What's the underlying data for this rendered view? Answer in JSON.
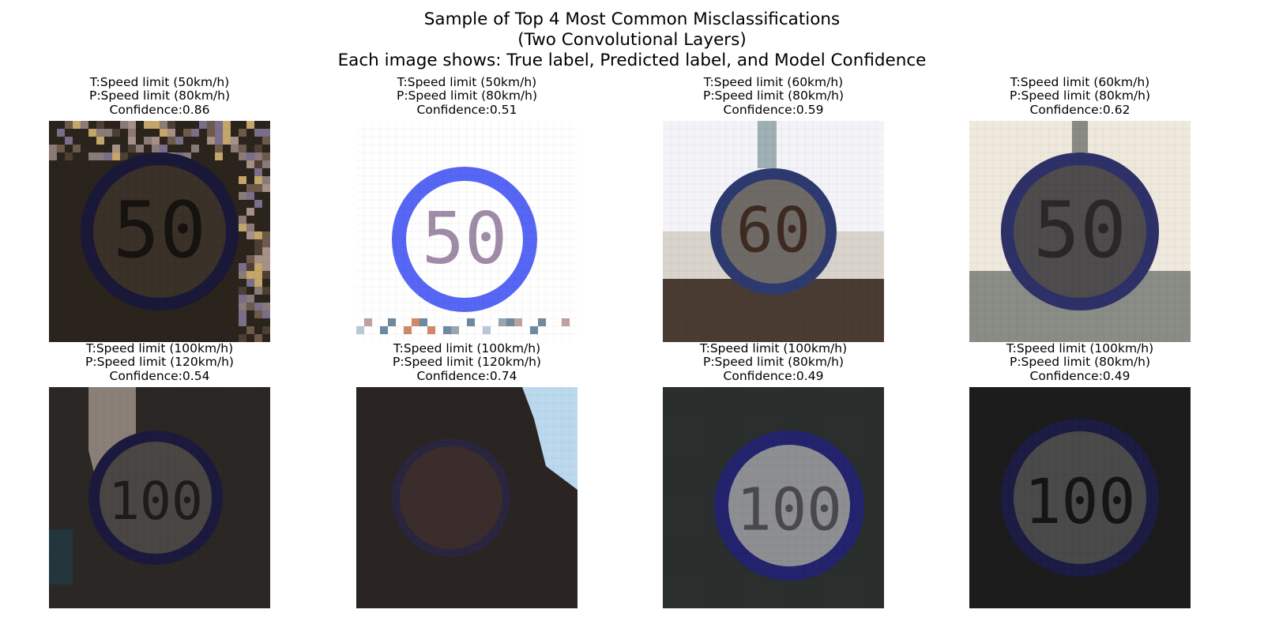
{
  "figure": {
    "title_lines": [
      "Sample of Top 4 Most Common Misclassifications",
      "(Two Convolutional Layers)",
      "Each image shows: True label, Predicted label, and Model Confidence"
    ]
  },
  "panels": [
    {
      "true_label": "T:Speed limit (50km/h)",
      "pred_label": "P:Speed limit (80km/h)",
      "confidence": "Confidence:0.86",
      "image": {
        "kind": "dark-sign",
        "digits": "50",
        "bg": "#2a241d",
        "ring": "#1a1838",
        "face": "#3a3128",
        "text_color": "#161210",
        "mottled": true
      }
    },
    {
      "true_label": "T:Speed limit (50km/h)",
      "pred_label": "P:Speed limit (80km/h)",
      "confidence": "Confidence:0.51",
      "image": {
        "kind": "bright-sign",
        "digits": "50",
        "bg": "#ffffff",
        "ring": "#5767f5",
        "face": "#ffffff",
        "text_color": "#a08ca8"
      }
    },
    {
      "true_label": "T:Speed limit (60km/h)",
      "pred_label": "P:Speed limit (80km/h)",
      "confidence": "Confidence:0.59",
      "image": {
        "kind": "scene-sign",
        "digits": "60",
        "bg": "#f4f4f8",
        "ring": "#2d3a70",
        "face": "#6f6a66",
        "text_color": "#3d2b22",
        "lower": "#4a3c32"
      }
    },
    {
      "true_label": "T:Speed limit (60km/h)",
      "pred_label": "P:Speed limit (80km/h)",
      "confidence": "Confidence:0.62",
      "image": {
        "kind": "haze-sign",
        "digits": "50",
        "bg": "#efe8dc",
        "ring": "#2e3168",
        "face": "#4e4c4c",
        "text_color": "#2a2827",
        "lower": "#8a8c86"
      }
    },
    {
      "true_label": "T:Speed limit (100km/h)",
      "pred_label": "P:Speed limit (120km/h)",
      "confidence": "Confidence:0.54",
      "image": {
        "kind": "dark-sign",
        "digits": "100",
        "bg": "#2b2725",
        "ring": "#1b1a3e",
        "face": "#4a4643",
        "text_color": "#1e1c1b",
        "corner": "#8a8078"
      }
    },
    {
      "true_label": "T:Speed limit (100km/h)",
      "pred_label": "P:Speed limit (120km/h)",
      "confidence": "Confidence:0.74",
      "image": {
        "kind": "dark-sign",
        "digits": "",
        "bg": "#2a2422",
        "ring": "#2a2540",
        "face": "#3b2d2b",
        "text_color": "#2a2020",
        "corner_right": "#bcd8ee"
      }
    },
    {
      "true_label": "T:Speed limit (100km/h)",
      "pred_label": "P:Speed limit (80km/h)",
      "confidence": "Confidence:0.49",
      "image": {
        "kind": "dark-sign",
        "digits": "100",
        "bg": "#2a2e2c",
        "ring": "#23236e",
        "face": "#8e8f92",
        "text_color": "#4a4a4c"
      }
    },
    {
      "true_label": "T:Speed limit (100km/h)",
      "pred_label": "P:Speed limit (80km/h)",
      "confidence": "Confidence:0.49",
      "image": {
        "kind": "dark-sign",
        "digits": "100",
        "bg": "#1c1c1c",
        "ring": "#1c1c44",
        "face": "#4a4a4a",
        "text_color": "#151515"
      }
    }
  ]
}
